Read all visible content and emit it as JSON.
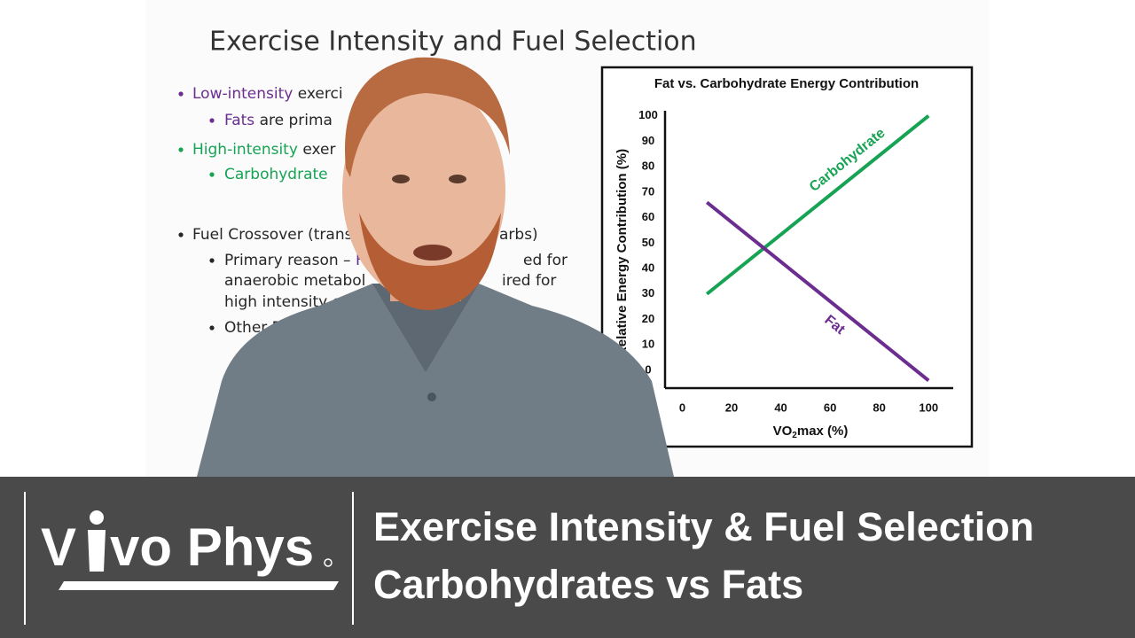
{
  "slide": {
    "title": "Exercise Intensity and Fuel Selection",
    "lines": [
      [
        "Low-intensity",
        " exerci",
        ")"
      ],
      [
        "Fats",
        " are prima"
      ],
      [
        "High-intensity",
        " exer"
      ],
      [
        "Carbohydrate"
      ],
      [
        "Fuel Crossover (transit",
        "arbs)"
      ],
      [
        "Primary reason – ",
        "Fa",
        "ed for"
      ],
      [
        "anaerobic metabol",
        "ired for"
      ],
      [
        "high intensity ex"
      ],
      [
        "Other Rea"
      ]
    ]
  },
  "chart_data": {
    "type": "line",
    "title": "Fat vs. Carbohydrate Energy Contribution",
    "y_label": "Relative Energy Contribution (%)",
    "x_label_parts": [
      "VO",
      "2",
      "max (%)"
    ],
    "x": [
      10,
      100
    ],
    "series": [
      {
        "name": "Carbohydrate",
        "color": "#17a354",
        "values": [
          30,
          100
        ]
      },
      {
        "name": "Fat",
        "color": "#6b2d8f",
        "values": [
          66,
          -4
        ]
      }
    ],
    "xlim": [
      -7,
      110
    ],
    "ylim": [
      -7,
      102
    ],
    "xticks": [
      0,
      20,
      40,
      60,
      80,
      100
    ],
    "yticks": [
      0,
      10,
      20,
      30,
      40,
      50,
      60,
      70,
      80,
      90,
      100
    ]
  },
  "banner": {
    "logo_start": "V",
    "logo_end": "vo Phys",
    "title": "Exercise Intensity & Fuel Selection",
    "subtitle": "Carbohydrates vs Fats"
  }
}
